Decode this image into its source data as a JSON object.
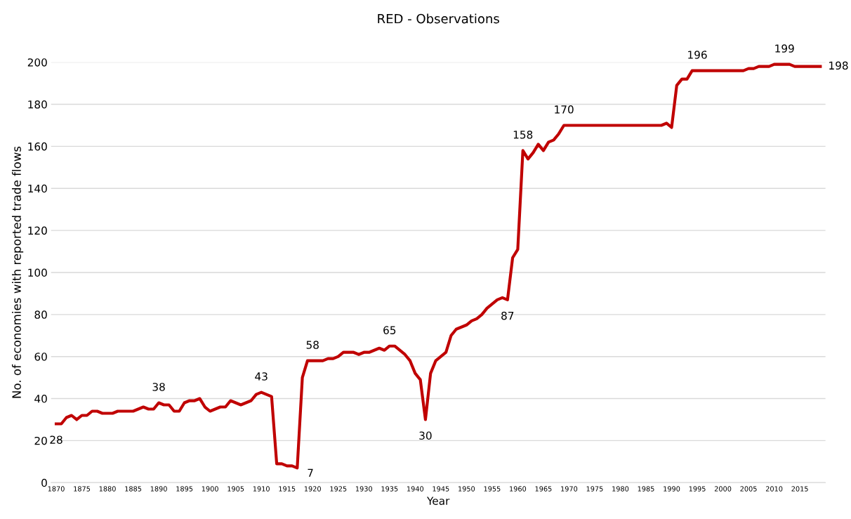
{
  "chart_data": {
    "type": "line",
    "title": "RED - Observations",
    "xlabel": "Year",
    "ylabel": "No. of economies with reported trade flows",
    "x": [
      1870,
      1871,
      1872,
      1873,
      1874,
      1875,
      1876,
      1877,
      1878,
      1879,
      1880,
      1881,
      1882,
      1883,
      1884,
      1885,
      1886,
      1887,
      1888,
      1889,
      1890,
      1891,
      1892,
      1893,
      1894,
      1895,
      1896,
      1897,
      1898,
      1899,
      1900,
      1901,
      1902,
      1903,
      1904,
      1905,
      1906,
      1907,
      1908,
      1909,
      1910,
      1911,
      1912,
      1913,
      1914,
      1915,
      1916,
      1917,
      1918,
      1919,
      1920,
      1921,
      1922,
      1923,
      1924,
      1925,
      1926,
      1927,
      1928,
      1929,
      1930,
      1931,
      1932,
      1933,
      1934,
      1935,
      1936,
      1937,
      1938,
      1939,
      1940,
      1941,
      1942,
      1943,
      1944,
      1945,
      1946,
      1947,
      1948,
      1949,
      1950,
      1951,
      1952,
      1953,
      1954,
      1955,
      1956,
      1957,
      1958,
      1959,
      1960,
      1961,
      1962,
      1963,
      1964,
      1965,
      1966,
      1967,
      1968,
      1969,
      1970,
      1971,
      1972,
      1973,
      1974,
      1975,
      1976,
      1977,
      1978,
      1979,
      1980,
      1981,
      1982,
      1983,
      1984,
      1985,
      1986,
      1987,
      1988,
      1989,
      1990,
      1991,
      1992,
      1993,
      1994,
      1995,
      1996,
      1997,
      1998,
      1999,
      2000,
      2001,
      2002,
      2003,
      2004,
      2005,
      2006,
      2007,
      2008,
      2009,
      2010,
      2011,
      2012,
      2013,
      2014,
      2015,
      2016,
      2017,
      2018,
      2019
    ],
    "series": [
      {
        "color": "#c00000",
        "values": [
          28,
          28,
          31,
          32,
          30,
          32,
          32,
          34,
          34,
          33,
          33,
          33,
          34,
          34,
          34,
          34,
          35,
          36,
          35,
          35,
          38,
          37,
          37,
          34,
          34,
          38,
          39,
          39,
          40,
          36,
          34,
          35,
          36,
          36,
          39,
          38,
          37,
          38,
          39,
          42,
          43,
          42,
          41,
          9,
          9,
          8,
          8,
          7,
          50,
          58,
          58,
          58,
          58,
          59,
          59,
          60,
          62,
          62,
          62,
          61,
          62,
          62,
          63,
          64,
          63,
          65,
          65,
          63,
          61,
          58,
          52,
          49,
          30,
          52,
          58,
          60,
          62,
          70,
          73,
          74,
          75,
          77,
          78,
          80,
          83,
          85,
          87,
          88,
          87,
          107,
          111,
          158,
          154,
          157,
          161,
          158,
          162,
          163,
          166,
          170,
          170,
          170,
          170,
          170,
          170,
          170,
          170,
          170,
          170,
          170,
          170,
          170,
          170,
          170,
          170,
          170,
          170,
          170,
          170,
          171,
          169,
          189,
          192,
          192,
          196,
          196,
          196,
          196,
          196,
          196,
          196,
          196,
          196,
          196,
          196,
          197,
          197,
          198,
          198,
          198,
          199,
          199,
          199,
          199,
          198,
          198,
          198,
          198,
          198,
          198
        ]
      }
    ],
    "annotations": [
      {
        "text": "28",
        "x": 1870,
        "y": 28
      },
      {
        "text": "38",
        "x": 1890,
        "y": 38
      },
      {
        "text": "43",
        "x": 1910,
        "y": 43
      },
      {
        "text": "7",
        "x": 1917,
        "y": 7
      },
      {
        "text": "58",
        "x": 1920,
        "y": 58
      },
      {
        "text": "65",
        "x": 1935,
        "y": 65
      },
      {
        "text": "30",
        "x": 1942,
        "y": 30
      },
      {
        "text": "87",
        "x": 1958,
        "y": 87
      },
      {
        "text": "158",
        "x": 1961,
        "y": 158
      },
      {
        "text": "170",
        "x": 1969,
        "y": 170
      },
      {
        "text": "196",
        "x": 1995,
        "y": 196
      },
      {
        "text": "199",
        "x": 2012,
        "y": 199
      },
      {
        "text": "198",
        "x": 2019,
        "y": 198
      }
    ],
    "xlim": [
      1869,
      2020
    ],
    "xticks": [
      1870,
      1875,
      1880,
      1885,
      1890,
      1895,
      1900,
      1905,
      1910,
      1915,
      1920,
      1925,
      1930,
      1935,
      1940,
      1945,
      1950,
      1955,
      1960,
      1965,
      1970,
      1975,
      1980,
      1985,
      1990,
      1995,
      2000,
      2005,
      2010,
      2015
    ],
    "ylim": [
      0,
      200
    ],
    "yticks": [
      0,
      20,
      40,
      60,
      80,
      100,
      120,
      140,
      160,
      180,
      200
    ],
    "grid": "y",
    "marker": "none",
    "line_style": "solid"
  }
}
